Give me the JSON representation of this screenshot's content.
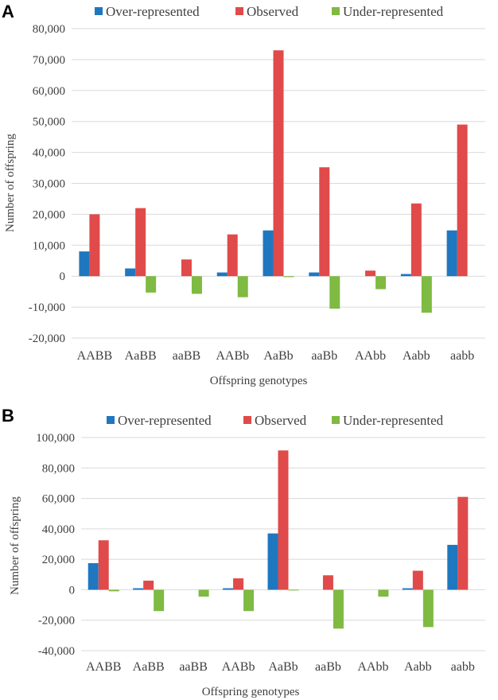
{
  "colors": {
    "over": "#1f77c0",
    "observed": "#e04a4a",
    "under": "#7fba42"
  },
  "chart_data": [
    {
      "panel": "A",
      "type": "bar",
      "categories": [
        "AABB",
        "AaBB",
        "aaBB",
        "AABb",
        "AaBb",
        "aaBb",
        "AAbb",
        "Aabb",
        "aabb"
      ],
      "series": [
        {
          "name": "Over-represented",
          "key": "over",
          "values": [
            8000,
            2500,
            0,
            1200,
            14800,
            1200,
            0,
            700,
            14800
          ]
        },
        {
          "name": "Observed",
          "key": "observed",
          "values": [
            20000,
            22000,
            5400,
            13500,
            73000,
            35200,
            1800,
            23500,
            49000
          ]
        },
        {
          "name": "Under-represented",
          "key": "under",
          "values": [
            0,
            -5300,
            -5700,
            -6800,
            -300,
            -10500,
            -4200,
            -11800,
            0
          ]
        }
      ],
      "yticks": [
        -20000,
        -10000,
        0,
        10000,
        20000,
        30000,
        40000,
        50000,
        60000,
        70000,
        80000
      ],
      "ytick_labels": [
        "-20,000",
        "-10,000",
        "0",
        "10,000",
        "20,000",
        "30,000",
        "40,000",
        "50,000",
        "60,000",
        "70,000",
        "80,000"
      ],
      "ylim": [
        -20000,
        80000
      ],
      "xlabel": "Offspring  genotypes",
      "ylabel": "Number  of  offspring",
      "legend": "top"
    },
    {
      "panel": "B",
      "type": "bar",
      "categories": [
        "AABB",
        "AaBB",
        "aaBB",
        "AABb",
        "AaBb",
        "aaBb",
        "AAbb",
        "Aabb",
        "aabb"
      ],
      "series": [
        {
          "name": "Over-represented",
          "key": "over",
          "values": [
            17500,
            1000,
            0,
            1000,
            37000,
            0,
            0,
            1000,
            29500
          ]
        },
        {
          "name": "Observed",
          "key": "observed",
          "values": [
            32500,
            6000,
            0,
            7500,
            91500,
            9500,
            0,
            12500,
            61000
          ]
        },
        {
          "name": "Under-represented",
          "key": "under",
          "values": [
            -1000,
            -14000,
            -4500,
            -14000,
            -500,
            -25500,
            -4500,
            -24500,
            0
          ]
        }
      ],
      "yticks": [
        -40000,
        -20000,
        0,
        20000,
        40000,
        60000,
        80000,
        100000
      ],
      "ytick_labels": [
        "-40,000",
        "-20,000",
        "0",
        "20,000",
        "40,000",
        "60,000",
        "80,000",
        "100,000"
      ],
      "ylim": [
        -40000,
        100000
      ],
      "xlabel": "Offspring  genotypes",
      "ylabel": "Number  of  offspring",
      "legend": "top"
    }
  ]
}
